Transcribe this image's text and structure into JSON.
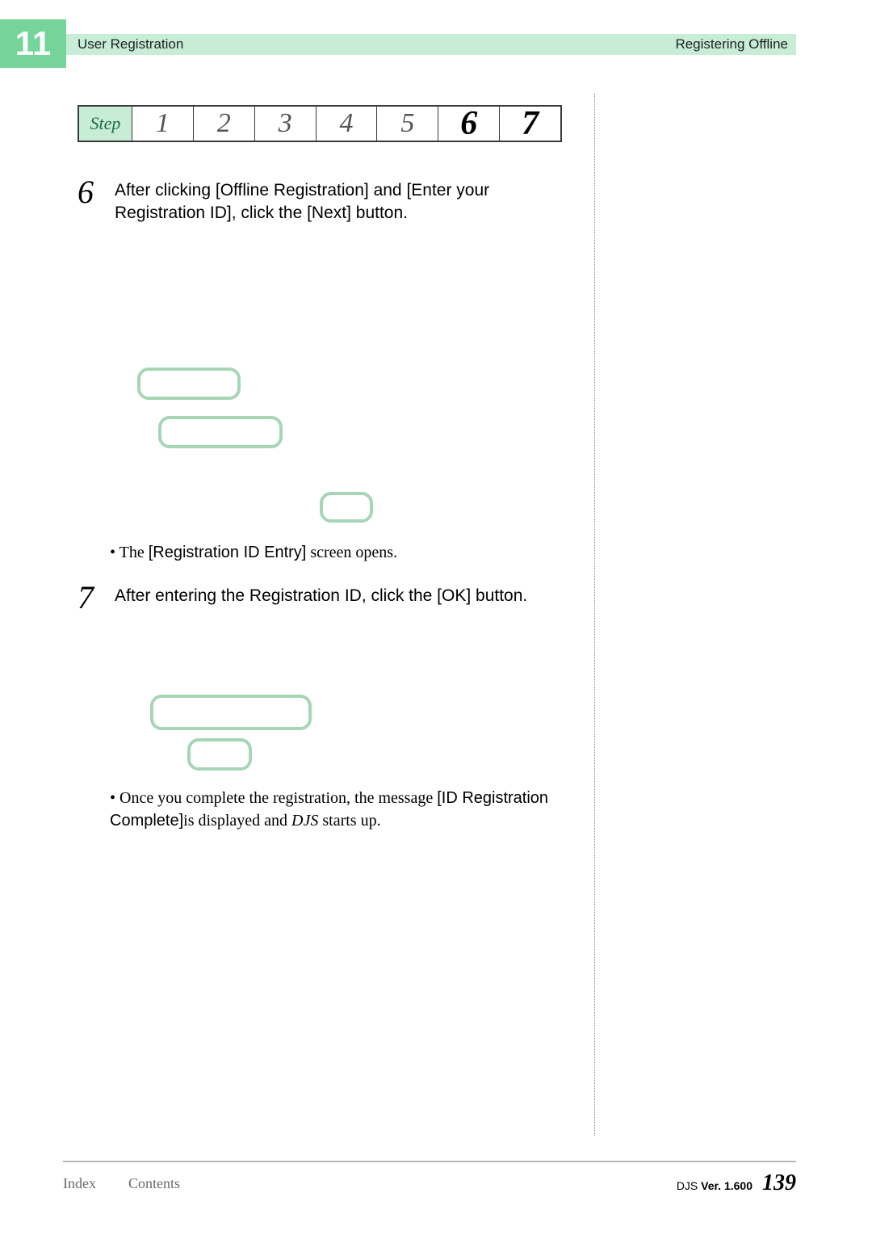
{
  "header": {
    "chapter_number": "11",
    "left_title": "User Registration",
    "right_title": "Registering Offline"
  },
  "step_tracker": {
    "label": "Step",
    "steps": [
      "1",
      "2",
      "3",
      "4",
      "5",
      "6",
      "7"
    ],
    "active_indexes": [
      5,
      6
    ],
    "label_bg": "#c7edd7",
    "label_color": "#1f6b46",
    "border_color": "#3a3a3a",
    "past_fontsize": 34,
    "active_fontsize": 42
  },
  "instructions": {
    "step6": {
      "num": "6",
      "text": "After clicking [Offline Registration] and [Enter your Registration ID], click the [Next] button."
    },
    "step6_bullet_prefix": "The ",
    "step6_bullet_bold": "[Registration ID Entry]",
    "step6_bullet_suffix": "  screen opens.",
    "step7": {
      "num": "7",
      "text": "After entering the Registration ID, click the [OK] button."
    },
    "step7_bullet_prefix": "Once you complete the registration, the message ",
    "step7_bullet_bold": "[ID Registration Complete]",
    "step7_bullet_mid": "is displayed and ",
    "step7_bullet_italic": "DJS",
    "step7_bullet_suffix": " starts up."
  },
  "placeholders": {
    "border_color": "#a7d5b8",
    "border_radius": 14,
    "border_width": 4
  },
  "footer": {
    "index_label": "Index",
    "contents_label": "Contents",
    "version_prefix": "DJS ",
    "version_bold": "Ver. 1.600",
    "page_number": "139"
  },
  "colors": {
    "badge_bg": "#74d49a",
    "strip_bg": "#c7edd7",
    "divider": "#888888",
    "footer_rule": "#b8b8b8",
    "footer_link": "#6a6a6a"
  }
}
